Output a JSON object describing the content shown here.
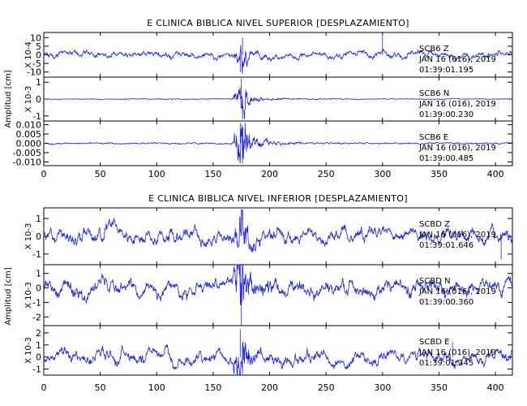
{
  "colors": {
    "trace": "#1f1fe0",
    "axis": "#000000",
    "background": "#ffffff"
  },
  "chart_data": [
    {
      "type": "line",
      "title": "E CLINICA BIBLICA NIVEL SUPERIOR [DESPLAZAMIENTO]",
      "ylabel": "Amplitud [cm]",
      "xlim": [
        0,
        415
      ],
      "x_ticks": [
        0,
        50,
        100,
        150,
        200,
        250,
        300,
        350,
        400
      ],
      "grid": false,
      "panels": [
        {
          "scale_label": "X 10-4",
          "ylim": [
            -13,
            13
          ],
          "y_ticks": [
            -10,
            -5,
            0,
            5,
            10
          ],
          "y_tick_labels": [
            "-10",
            "-5",
            "0",
            "5",
            "10"
          ],
          "station": "SCB6   Z",
          "date": "JAN 16 (016), 2019",
          "time": "01:39:01.195",
          "approx_peaks": [
            {
              "x": 174,
              "y": -10
            },
            {
              "x": 176,
              "y": 10
            },
            {
              "x": 300,
              "y": 11
            }
          ],
          "shape": "long-period"
        },
        {
          "scale_label": "X 10-3",
          "ylim": [
            -1.3,
            1.3
          ],
          "y_ticks": [
            -1,
            0,
            1
          ],
          "y_tick_labels": [
            "-1",
            "0",
            "1"
          ],
          "station": "SCB6   N",
          "date": "JAN 16 (016), 2019",
          "time": "01:39:00.230",
          "approx_peaks": [
            {
              "x": 175,
              "y": 1.2
            },
            {
              "x": 176,
              "y": -1.2
            }
          ],
          "shape": "burst"
        },
        {
          "scale_label": "",
          "ylim": [
            -0.012,
            0.012
          ],
          "y_ticks": [
            -0.01,
            -0.005,
            0.0,
            0.005,
            0.01
          ],
          "y_tick_labels": [
            "-0.010",
            "-0.005",
            "0.000",
            "0.005",
            "0.010"
          ],
          "station": "SCB6   E",
          "date": "JAN 16 (016), 2019",
          "time": "01:39:00.485",
          "approx_peaks": [
            {
              "x": 174,
              "y": 0.011
            },
            {
              "x": 176,
              "y": -0.011
            }
          ],
          "shape": "burst"
        }
      ]
    },
    {
      "type": "line",
      "title": "E CLINICA BIBLICA NIVEL INFERIOR [DESPLAZAMIENTO]",
      "ylabel": "Amplitud [cm]",
      "xlim": [
        0,
        415
      ],
      "x_ticks": [
        0,
        50,
        100,
        150,
        200,
        250,
        300,
        350,
        400
      ],
      "grid": false,
      "panels": [
        {
          "scale_label": "X 10-3",
          "ylim": [
            -1.6,
            1.6
          ],
          "y_ticks": [
            -1,
            0,
            1
          ],
          "y_tick_labels": [
            "-1",
            "0",
            "1"
          ],
          "station": "SCBD   Z",
          "date": "JAN 16 (016), 2019",
          "time": "01:39:01.646",
          "approx_peaks": [
            {
              "x": 175,
              "y": 1.5
            },
            {
              "x": 405,
              "y": -1.3
            }
          ],
          "shape": "long-period"
        },
        {
          "scale_label": "X 10-3",
          "ylim": [
            -2.6,
            1.6
          ],
          "y_ticks": [
            -2,
            -1,
            0,
            1
          ],
          "y_tick_labels": [
            "-2",
            "-1",
            "0",
            "1"
          ],
          "station": "SCBD   N",
          "date": "JAN 16 (016), 2019",
          "time": "01:39:00.360",
          "approx_peaks": [
            {
              "x": 174,
              "y": 1.6
            },
            {
              "x": 175,
              "y": -2.6
            }
          ],
          "shape": "mixed"
        },
        {
          "scale_label": "X 10-3",
          "ylim": [
            -1.5,
            2.6
          ],
          "y_ticks": [
            -1,
            0,
            1,
            2
          ],
          "y_tick_labels": [
            "-1",
            "0",
            "1",
            "2"
          ],
          "station": "SCBD   E",
          "date": "JAN 16 (016), 2019",
          "time": "01:39:01.345",
          "approx_peaks": [
            {
              "x": 174,
              "y": 2.3
            },
            {
              "x": 362,
              "y": 1.2
            },
            {
              "x": 176,
              "y": -1.4
            }
          ],
          "shape": "mixed"
        }
      ]
    }
  ]
}
